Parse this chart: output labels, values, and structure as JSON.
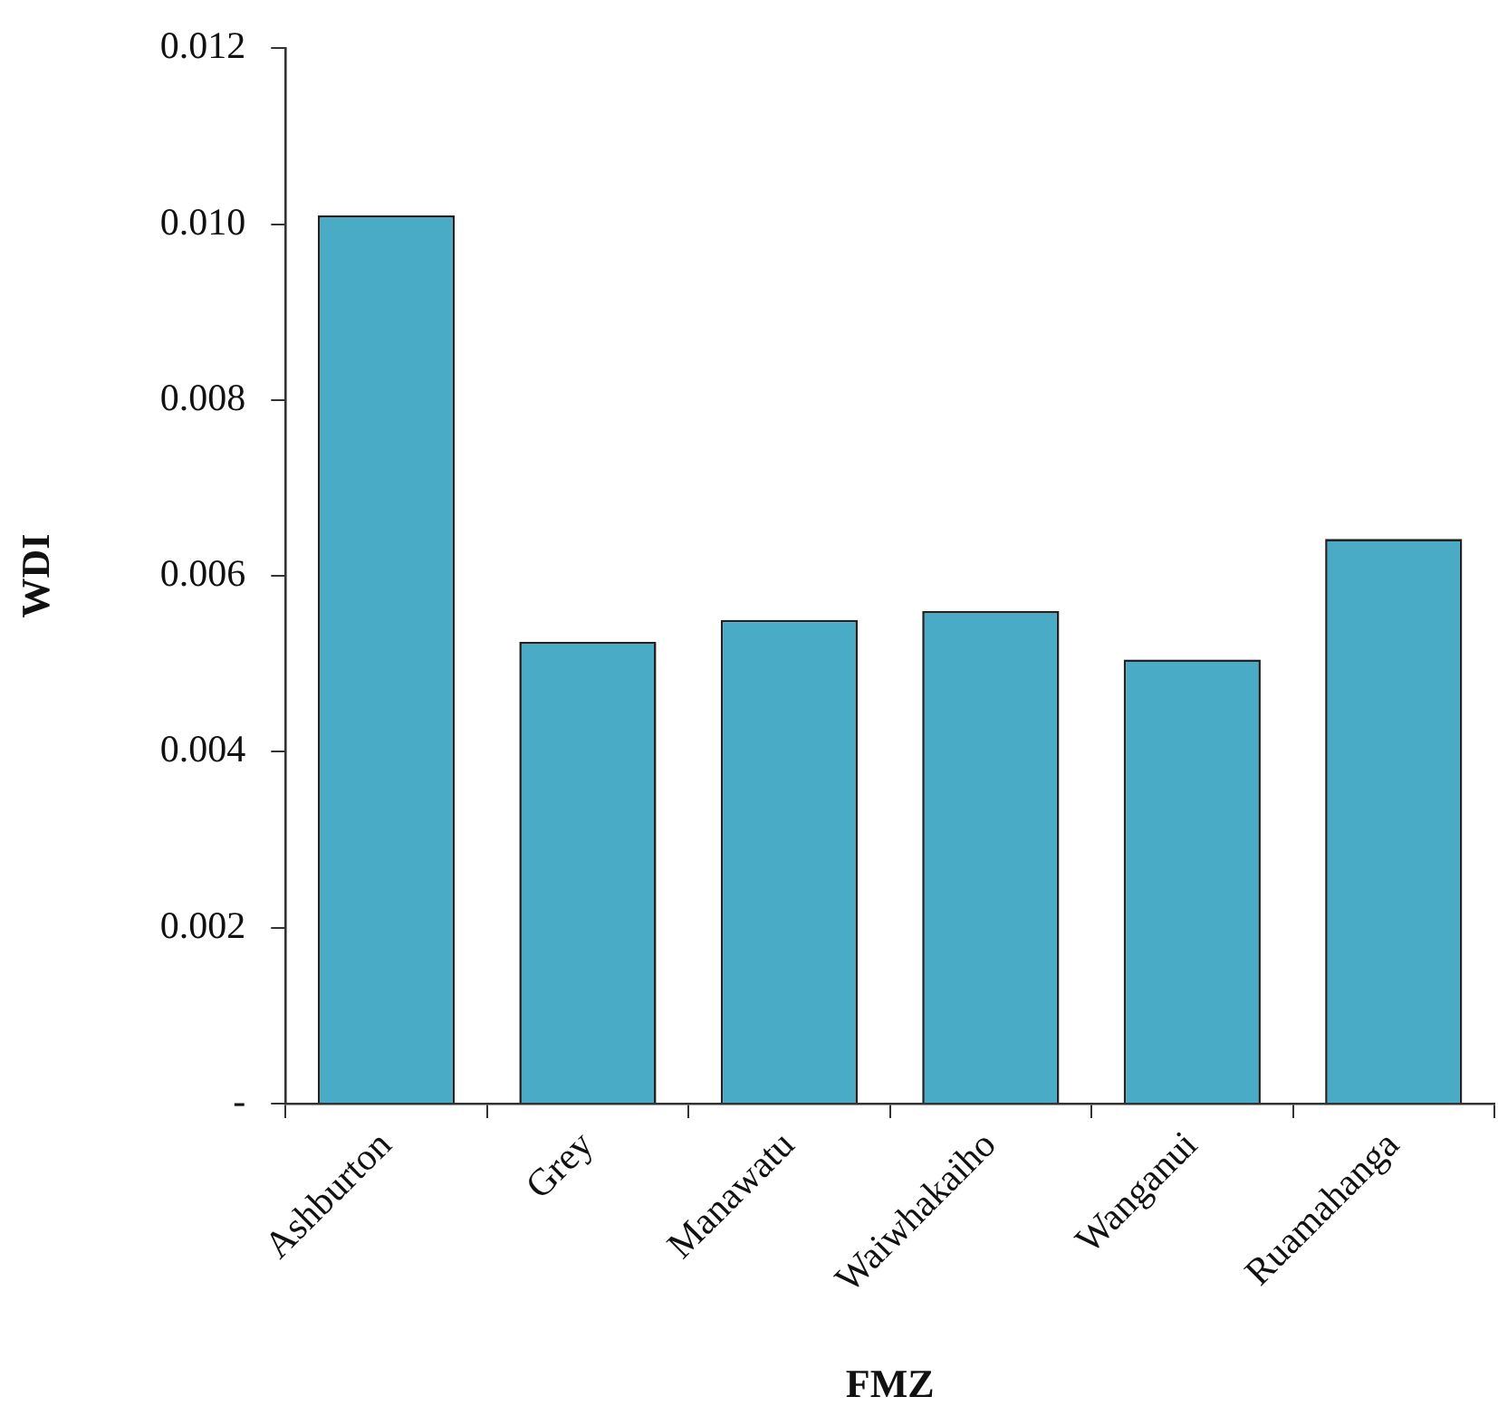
{
  "chart_data": {
    "type": "bar",
    "xlabel": "FMZ",
    "ylabel": "WDI",
    "categories": [
      "Ashburton",
      "Grey",
      "Manawatu",
      "Waiwhakaiho",
      "Wanganui",
      "Ruamahanga"
    ],
    "values": [
      0.0101,
      0.00525,
      0.0055,
      0.0056,
      0.00505,
      0.00642
    ],
    "color": "#4aabc6",
    "ylim": [
      0,
      0.012
    ],
    "yticks": [
      {
        "value": 0,
        "label": "-"
      },
      0.002,
      0.004,
      0.006,
      0.008,
      {
        "value": 0.01,
        "label": "0.010"
      },
      0.012
    ],
    "grid": false,
    "legend": false
  }
}
